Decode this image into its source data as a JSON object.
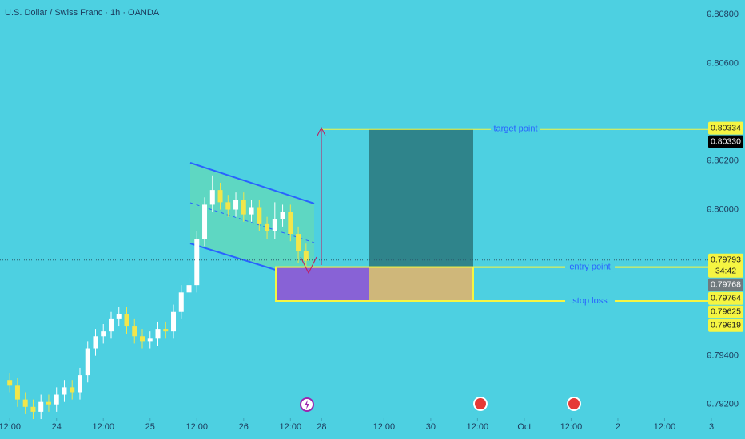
{
  "chart_data": {
    "type": "candlestick",
    "title": "U.S. Dollar / Swiss Franc · 1h · OANDA",
    "x": [
      0,
      2,
      4,
      6,
      8,
      10,
      12,
      14,
      16,
      18,
      20,
      22,
      24,
      26,
      28,
      30,
      32,
      34,
      36,
      38,
      40,
      42,
      44,
      46,
      48,
      50,
      52,
      54,
      56,
      58,
      60,
      62,
      64,
      66,
      68,
      70,
      72,
      74,
      76
    ],
    "open": [
      0.793,
      0.7928,
      0.7922,
      0.7919,
      0.7917,
      0.7921,
      0.792,
      0.7924,
      0.7927,
      0.7925,
      0.7932,
      0.7943,
      0.7948,
      0.795,
      0.7955,
      0.7957,
      0.7952,
      0.7948,
      0.7946,
      0.7947,
      0.7951,
      0.795,
      0.7958,
      0.7966,
      0.7969,
      0.7988,
      0.8002,
      0.8008,
      0.8003,
      0.8,
      0.8004,
      0.7998,
      0.8001,
      0.7994,
      0.7991,
      0.7996,
      0.7999,
      0.799,
      0.7983
    ],
    "high": [
      0.7933,
      0.7931,
      0.7925,
      0.7922,
      0.7924,
      0.7924,
      0.7927,
      0.793,
      0.793,
      0.7935,
      0.7946,
      0.7951,
      0.7953,
      0.7958,
      0.796,
      0.796,
      0.7955,
      0.7951,
      0.795,
      0.7954,
      0.7954,
      0.7961,
      0.7969,
      0.7972,
      0.7991,
      0.8005,
      0.8014,
      0.8011,
      0.8006,
      0.8007,
      0.8007,
      0.8004,
      0.8004,
      0.7997,
      0.8003,
      0.8002,
      0.8002,
      0.7993,
      0.7986
    ],
    "low": [
      0.7925,
      0.7919,
      0.7916,
      0.7914,
      0.7914,
      0.7917,
      0.7917,
      0.7921,
      0.7922,
      0.7922,
      0.7929,
      0.794,
      0.7945,
      0.7947,
      0.7952,
      0.7949,
      0.7945,
      0.7943,
      0.7943,
      0.7944,
      0.7947,
      0.7947,
      0.7955,
      0.7963,
      0.7966,
      0.7985,
      0.7999,
      0.8,
      0.7997,
      0.7997,
      0.7995,
      0.7995,
      0.7991,
      0.7988,
      0.7988,
      0.7993,
      0.7987,
      0.7978,
      0.7976
    ],
    "close": [
      0.7928,
      0.7922,
      0.7919,
      0.7917,
      0.7921,
      0.792,
      0.7924,
      0.7927,
      0.7925,
      0.7932,
      0.7943,
      0.7948,
      0.795,
      0.7955,
      0.7957,
      0.7952,
      0.7948,
      0.7946,
      0.7947,
      0.7951,
      0.795,
      0.7958,
      0.7966,
      0.7969,
      0.7988,
      0.8002,
      0.8008,
      0.8003,
      0.8,
      0.8004,
      0.7998,
      0.8001,
      0.7994,
      0.7991,
      0.7996,
      0.7999,
      0.799,
      0.7983,
      0.7979
    ],
    "up_color": "#ffffff",
    "down_color": "#f2e64b",
    "xlim": [
      -2.5,
      180
    ],
    "xticks": [
      {
        "value": 0,
        "label": "12:00"
      },
      {
        "value": 12,
        "label": "24"
      },
      {
        "value": 24,
        "label": "12:00"
      },
      {
        "value": 36,
        "label": "25"
      },
      {
        "value": 48,
        "label": "12:00"
      },
      {
        "value": 60,
        "label": "26"
      },
      {
        "value": 72,
        "label": "12:00"
      },
      {
        "value": 80,
        "label": "28"
      },
      {
        "value": 96,
        "label": "12:00"
      },
      {
        "value": 108,
        "label": "30"
      },
      {
        "value": 120,
        "label": "12:00"
      },
      {
        "value": 132,
        "label": "Oct"
      },
      {
        "value": 144,
        "label": "12:00"
      },
      {
        "value": 156,
        "label": "2"
      },
      {
        "value": 168,
        "label": "12:00"
      },
      {
        "value": 180,
        "label": "3"
      }
    ],
    "ylim": [
      0.7915,
      0.8086
    ],
    "yticks": [
      {
        "value": 0.808,
        "label": "0.80800"
      },
      {
        "value": 0.806,
        "label": "0.80600"
      },
      {
        "value": 0.802,
        "label": "0.80200"
      },
      {
        "value": 0.8,
        "label": "0.80000"
      },
      {
        "value": 0.794,
        "label": "0.79400"
      },
      {
        "value": 0.792,
        "label": "0.79200"
      }
    ],
    "levels": {
      "target": {
        "label": "target point",
        "value": 0.8033
      },
      "entry": {
        "label": "entry point",
        "value": 0.79764
      },
      "stop": {
        "label": "stop loss",
        "value": 0.79625
      }
    },
    "current_price": 0.79793,
    "price_badges": [
      {
        "value": 0.80334,
        "label": "0.80334",
        "color": "#f5f542"
      },
      {
        "value": 0.8033,
        "label": "0.80330",
        "color": "#000000"
      },
      {
        "value": 0.79793,
        "label": "0.79793",
        "color": "#f5f542",
        "countdown": "34:42"
      },
      {
        "value": 0.79768,
        "label": "0.79768",
        "color": "#707a7e"
      },
      {
        "value": 0.79764,
        "label": "0.79764",
        "color": "#f5f542"
      },
      {
        "value": 0.79625,
        "label": "0.79625",
        "color": "#f5f542"
      },
      {
        "value": 0.79619,
        "label": "0.79619",
        "color": "#f5f542"
      }
    ]
  }
}
